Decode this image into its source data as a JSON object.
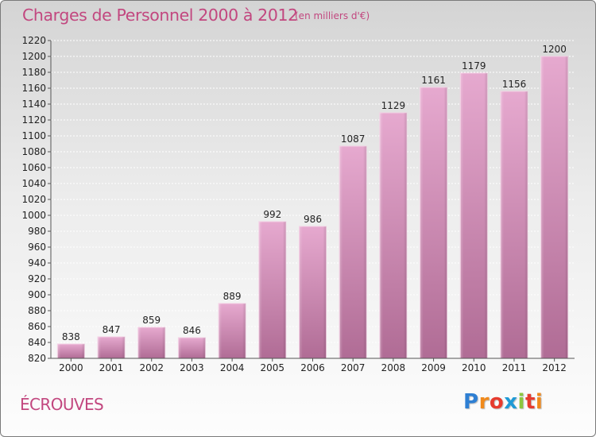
{
  "header": {
    "title": "Charges de Personnel 2000 à 2012",
    "unit": "(en milliers d'€)"
  },
  "footer": {
    "commune": "ÉCROUVES",
    "logo": "Proxiti"
  },
  "colors": {
    "title": "#c2477f",
    "bar_top": "#e6a9cf",
    "bar_bottom": "#b06c95",
    "bar_edge": "#f3cde3",
    "grid": "#ffffff",
    "axis": "#555555"
  },
  "chart_data": {
    "type": "bar",
    "title": "Charges de Personnel 2000 à 2012",
    "subtitle": "(en milliers d'€)",
    "xlabel": "",
    "ylabel": "",
    "categories": [
      "2000",
      "2001",
      "2002",
      "2003",
      "2004",
      "2005",
      "2006",
      "2007",
      "2008",
      "2009",
      "2010",
      "2011",
      "2012"
    ],
    "values": [
      838,
      847,
      859,
      846,
      889,
      992,
      986,
      1087,
      1129,
      1161,
      1179,
      1156,
      1200
    ],
    "ylim": [
      820,
      1220
    ],
    "yticks": [
      820,
      840,
      860,
      880,
      900,
      920,
      940,
      960,
      980,
      1000,
      1020,
      1040,
      1060,
      1080,
      1100,
      1120,
      1140,
      1160,
      1180,
      1200,
      1220
    ],
    "grid": true,
    "legend": "none"
  }
}
